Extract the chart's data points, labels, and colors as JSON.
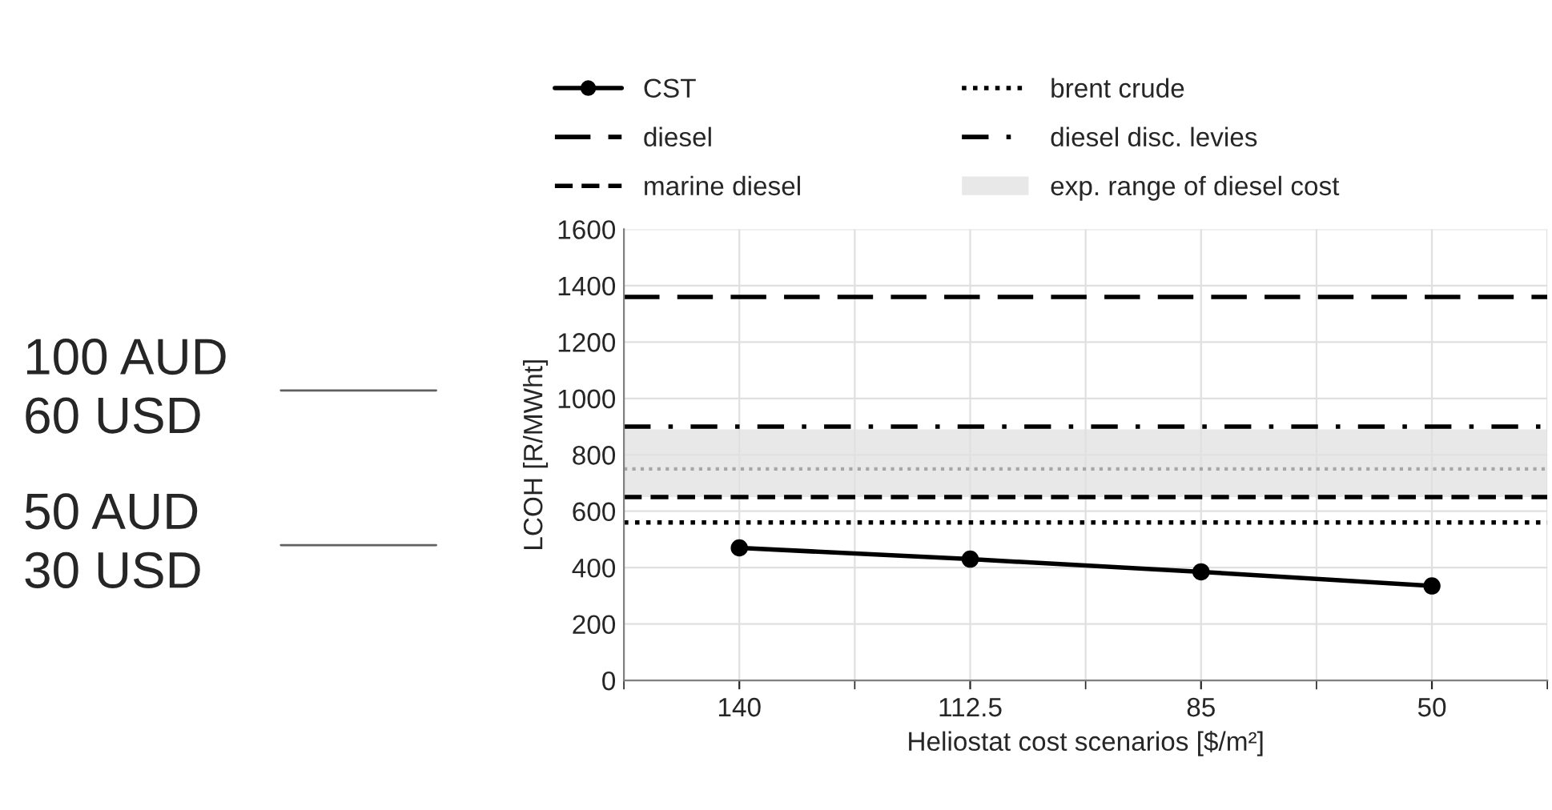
{
  "chart_data": {
    "type": "line",
    "xlabel": "Heliostat cost scenarios [$/m²]",
    "ylabel": "LCOH [R/MWht]",
    "categories": [
      "140",
      "112.5",
      "85",
      "50"
    ],
    "series": [
      {
        "name": "CST",
        "color": "#000000",
        "values": [
          470,
          430,
          385,
          335
        ],
        "marker": "circle",
        "line_style": "solid"
      }
    ],
    "ref_lines": [
      {
        "axis": "y",
        "value": 1360,
        "label": "diesel",
        "color": "#000000",
        "line_style": "longdash"
      },
      {
        "axis": "y",
        "value": 650,
        "label": "marine diesel",
        "color": "#000000",
        "line_style": "dashed"
      },
      {
        "axis": "y",
        "value": 560,
        "label": "brent crude",
        "color": "#000000",
        "line_style": "dotted"
      },
      {
        "axis": "y",
        "value": 900,
        "label": "diesel disc. levies",
        "color": "#000000",
        "line_style": "dashdot"
      },
      {
        "axis": "y",
        "value": 750,
        "color": "#a6a6a6",
        "line_style": "dotted"
      }
    ],
    "bands": [
      {
        "axis": "y",
        "from": 650,
        "to": 890,
        "label": "exp. range of diesel cost",
        "color": "#e8e8e8"
      }
    ],
    "annotations": [
      "100 AUD\n60 USD",
      "50 AUD\n30 USD"
    ],
    "ylim": [
      0,
      1600
    ],
    "yticks": [
      0,
      200,
      400,
      600,
      800,
      1000,
      1200,
      1400,
      1600
    ],
    "grid": true,
    "legend": "top"
  }
}
